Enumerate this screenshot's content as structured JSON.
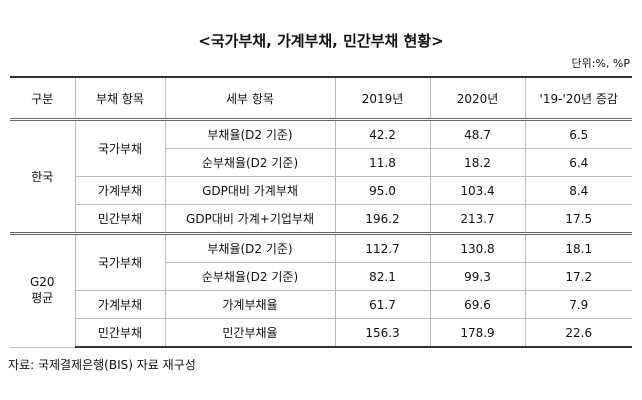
{
  "title": "<국가부채, 가계부채, 민간부채 현황>",
  "unit": "단위:%, %P",
  "table": {
    "header": [
      "구분",
      "부채 항목",
      "세부 항목",
      "2019년",
      "2020년",
      "'19-'20년 증감"
    ],
    "groups": [
      {
        "name": [
          "한국"
        ],
        "items": [
          {
            "name": "국가부채",
            "rows": [
              {
                "detail": "부채율(D2 기준)",
                "values": [
                  "42.2",
                  "48.7",
                  "6.5"
                ]
              },
              {
                "detail": "순부채율(D2 기준)",
                "values": [
                  "11.8",
                  "18.2",
                  "6.4"
                ]
              }
            ]
          },
          {
            "name": "가계부채",
            "rows": [
              {
                "detail": "GDP대비 가계부채",
                "values": [
                  "95.0",
                  "103.4",
                  "8.4"
                ]
              }
            ]
          },
          {
            "name": "민간부채",
            "rows": [
              {
                "detail": "GDP대비 가계+기업부채",
                "values": [
                  "196.2",
                  "213.7",
                  "17.5"
                ]
              }
            ]
          }
        ]
      },
      {
        "name": [
          "G20",
          "평균"
        ],
        "items": [
          {
            "name": "국가부채",
            "rows": [
              {
                "detail": "부채율(D2 기준)",
                "values": [
                  "112.7",
                  "130.8",
                  "18.1"
                ]
              },
              {
                "detail": "순부채율(D2 기준)",
                "values": [
                  "82.1",
                  "99.3",
                  "17.2"
                ]
              }
            ]
          },
          {
            "name": "가계부채",
            "rows": [
              {
                "detail": "가계부채율",
                "values": [
                  "61.7",
                  "69.6",
                  "7.9"
                ]
              }
            ]
          },
          {
            "name": "민간부채",
            "rows": [
              {
                "detail": "민간부채율",
                "values": [
                  "156.3",
                  "178.9",
                  "22.6"
                ]
              }
            ]
          }
        ]
      }
    ]
  },
  "source": "자료: 국제결제은행(BIS) 자료 재구성"
}
